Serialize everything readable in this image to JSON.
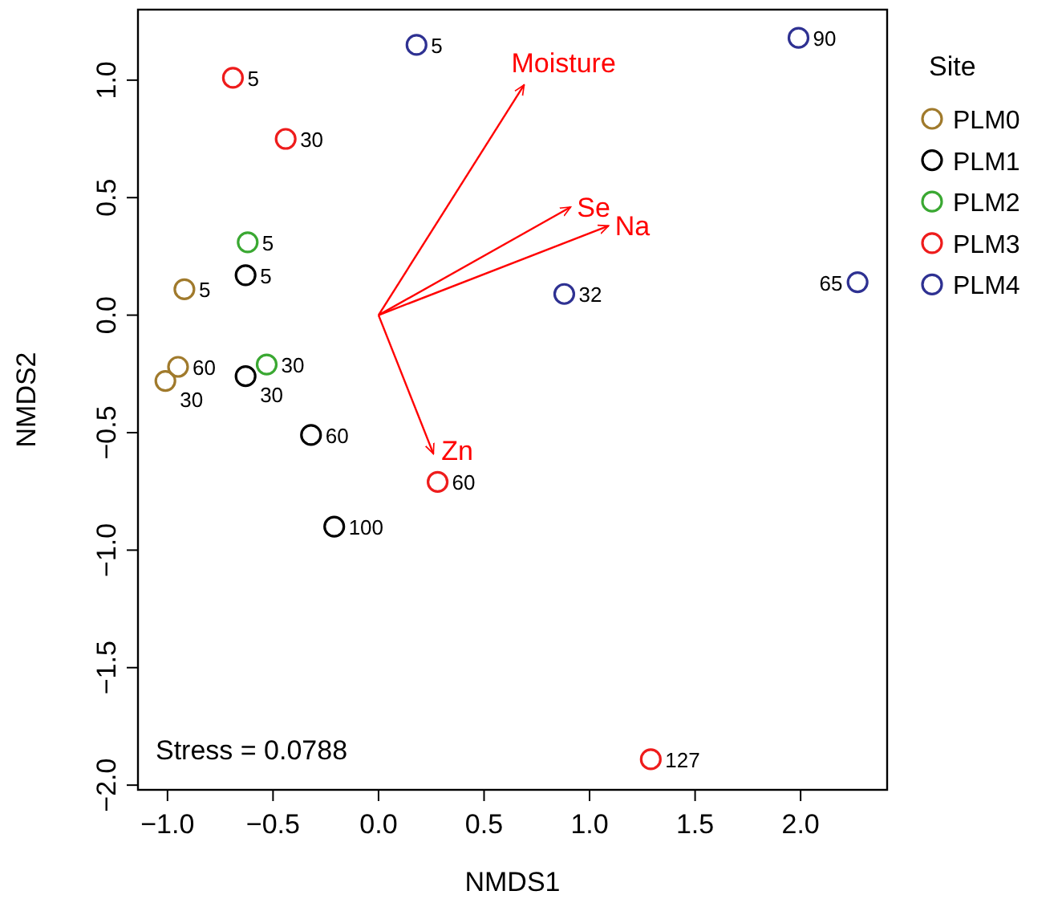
{
  "chart_data": {
    "type": "scatter",
    "xlabel": "NMDS1",
    "ylabel": "NMDS2",
    "legend_title": "Site",
    "legend": "right",
    "grid": false,
    "marker": "circle",
    "xlim": [
      -1.14,
      2.41
    ],
    "ylim": [
      -2.02,
      1.3
    ],
    "xticks": [
      {
        "value": -1,
        "label": "−1.0"
      },
      {
        "value": -0.5,
        "label": "−0.5"
      },
      {
        "value": 0,
        "label": "0.0"
      },
      {
        "value": 0.5,
        "label": "0.5"
      },
      {
        "value": 1,
        "label": "1.0"
      },
      {
        "value": 1.5,
        "label": "1.5"
      },
      {
        "value": 2,
        "label": "2.0"
      }
    ],
    "yticks": [
      {
        "value": -2,
        "label": "−2.0"
      },
      {
        "value": -1.5,
        "label": "−1.5"
      },
      {
        "value": -1,
        "label": "−1.0"
      },
      {
        "value": -0.5,
        "label": "−0.5"
      },
      {
        "value": 0,
        "label": "0.0"
      },
      {
        "value": 0.5,
        "label": "0.5"
      },
      {
        "value": 1,
        "label": "1.0"
      }
    ],
    "series": [
      {
        "name": "PLM0",
        "color": "#a07a2c",
        "x": [
          -0.92,
          -0.95,
          -1.01
        ],
        "values": [
          0.11,
          -0.22,
          -0.28
        ]
      },
      {
        "name": "PLM1",
        "color": "#000000",
        "x": [
          -0.63,
          -0.63,
          -0.32,
          -0.21
        ],
        "values": [
          0.17,
          -0.26,
          -0.51,
          -0.9
        ]
      },
      {
        "name": "PLM2",
        "color": "#3aa832",
        "x": [
          -0.62,
          -0.53
        ],
        "values": [
          0.31,
          -0.21
        ]
      },
      {
        "name": "PLM3",
        "color": "#ee1c1c",
        "x": [
          -0.69,
          -0.44,
          0.28,
          1.29
        ],
        "values": [
          1.01,
          0.75,
          -0.71,
          -1.89
        ]
      },
      {
        "name": "PLM4",
        "color": "#2e3192",
        "x": [
          0.18,
          1.99,
          0.88,
          2.27
        ],
        "values": [
          1.15,
          1.18,
          0.09,
          0.14
        ]
      },
      {
        "type": "line",
        "name": "Moisture",
        "color": "#ff0000",
        "marker": "none",
        "x": [
          0,
          0.69
        ],
        "values": [
          0,
          0.98
        ]
      },
      {
        "type": "line",
        "name": "Se",
        "color": "#ff0000",
        "marker": "none",
        "x": [
          0,
          0.91
        ],
        "values": [
          0,
          0.46
        ]
      },
      {
        "type": "line",
        "name": "Na",
        "color": "#ff0000",
        "marker": "none",
        "x": [
          0,
          1.09
        ],
        "values": [
          0,
          0.38
        ]
      },
      {
        "type": "line",
        "name": "Zn",
        "color": "#ff0000",
        "marker": "none",
        "x": [
          0,
          0.26
        ],
        "values": [
          0,
          -0.59
        ]
      }
    ],
    "annotations": [
      "Stress = 0.0788",
      {
        "text": "5",
        "x": -0.92,
        "y": 0.11
      },
      {
        "text": "60",
        "x": -0.95,
        "y": -0.22
      },
      {
        "text": "30",
        "x": -1.01,
        "y": -0.28
      },
      {
        "text": "5",
        "x": -0.63,
        "y": 0.17
      },
      {
        "text": "30",
        "x": -0.63,
        "y": -0.26
      },
      {
        "text": "60",
        "x": -0.32,
        "y": -0.51
      },
      {
        "text": "100",
        "x": -0.21,
        "y": -0.9
      },
      {
        "text": "5",
        "x": -0.62,
        "y": 0.31
      },
      {
        "text": "30",
        "x": -0.53,
        "y": -0.21
      },
      {
        "text": "5",
        "x": -0.69,
        "y": 1.01
      },
      {
        "text": "30",
        "x": -0.44,
        "y": 0.75
      },
      {
        "text": "60",
        "x": 0.28,
        "y": -0.71
      },
      {
        "text": "127",
        "x": 1.29,
        "y": -1.89
      },
      {
        "text": "5",
        "x": 0.18,
        "y": 1.15
      },
      {
        "text": "90",
        "x": 1.99,
        "y": 1.18
      },
      {
        "text": "32",
        "x": 0.88,
        "y": 0.09
      },
      {
        "text": "65",
        "x": 2.27,
        "y": 0.14
      }
    ]
  }
}
